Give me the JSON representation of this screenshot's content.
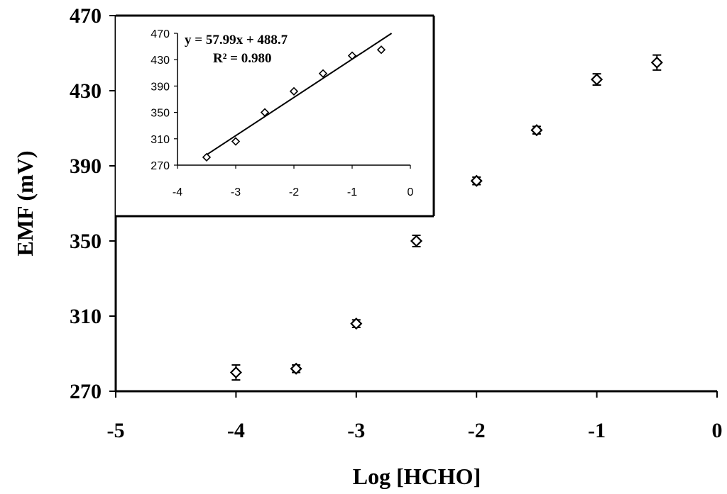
{
  "chart_data": [
    {
      "type": "scatter",
      "title": "",
      "xlabel": "Log [HCHO]",
      "ylabel": "EMF (mV)",
      "xlim": [
        -5,
        0
      ],
      "ylim": [
        270,
        470
      ],
      "xticks": [
        "-5",
        "-4",
        "-3",
        "-2",
        "-1",
        "0"
      ],
      "yticks": [
        "270",
        "310",
        "350",
        "390",
        "430",
        "470"
      ],
      "grid": false,
      "legend": "none",
      "marker": "open-diamond",
      "error_bars": true,
      "series": [
        {
          "x": [
            -4,
            -3.5,
            -3,
            -2.5,
            -2,
            -1.5,
            -1,
            -0.5
          ],
          "y": [
            280,
            282,
            306,
            350,
            382,
            409,
            436,
            445
          ],
          "yerr": [
            4,
            2,
            2,
            3,
            2,
            2,
            3,
            4
          ]
        }
      ]
    },
    {
      "type": "scatter",
      "title": "",
      "xlabel": "",
      "ylabel": "",
      "xlim": [
        -4,
        0
      ],
      "ylim": [
        270,
        470
      ],
      "xticks": [
        "-4",
        "-3",
        "-2",
        "-1",
        "0"
      ],
      "yticks": [
        "270",
        "310",
        "350",
        "390",
        "430",
        "470"
      ],
      "grid": false,
      "legend": "none",
      "marker": "open-diamond",
      "trendline": {
        "slope": 57.99,
        "intercept": 488.7
      },
      "equation": "y = 57.99x + 488.7",
      "r_squared": "R² = 0.980",
      "series": [
        {
          "x": [
            -3.5,
            -3,
            -2.5,
            -2,
            -1.5,
            -1,
            -0.5
          ],
          "y": [
            282,
            306,
            350,
            382,
            409,
            436,
            445
          ]
        }
      ]
    }
  ]
}
